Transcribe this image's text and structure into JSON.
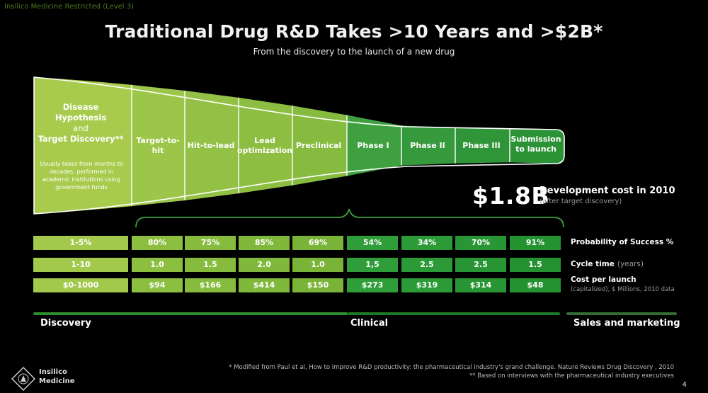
{
  "header": {
    "restricted": "Insilico Medicine Restricted (Level 3)",
    "title": "Traditional Drug R&D Takes >10 Years and >$2B*",
    "subtitle": "From the discovery to the launch of a new drug"
  },
  "funnel": {
    "first_stage": {
      "title_line1": "Disease Hypothesis",
      "title_line2": "and",
      "title_line3": "Target Discovery**",
      "note": "Usually takes from months to decades, performed in academic institutions using government funds"
    },
    "stages": [
      {
        "label": "Target-to-hit"
      },
      {
        "label": "Hit-to-lead"
      },
      {
        "label": "Lead optimization"
      },
      {
        "label": "Preclinical"
      },
      {
        "label": "Phase I"
      },
      {
        "label": "Phase II"
      },
      {
        "label": "Phase III"
      },
      {
        "label": "Submission to launch"
      }
    ]
  },
  "cost_callout": {
    "value": "$1.8B",
    "title": "Development cost in 2010",
    "subtitle": "(after target discovery)"
  },
  "metrics": {
    "rows": [
      {
        "label": "Probability of Success %",
        "label_muted": "",
        "sub": "",
        "first": "1-5%",
        "values": [
          "80%",
          "75%",
          "85%",
          "69%",
          "54%",
          "34%",
          "70%",
          "91%"
        ]
      },
      {
        "label": "Cycle time",
        "label_muted": "(years)",
        "sub": "",
        "first": "1-10",
        "values": [
          "1.0",
          "1.5",
          "2.0",
          "1.0",
          "1,5",
          "2.5",
          "2.5",
          "1.5"
        ]
      },
      {
        "label": "Cost per launch",
        "label_muted": "",
        "sub": "(capitalized), $ Millions, 2010 data",
        "first": "$0-1000",
        "values": [
          "$94",
          "$166",
          "$414",
          "$150",
          "$273",
          "$319",
          "$314",
          "$48"
        ]
      }
    ]
  },
  "phases": {
    "discovery": "Discovery",
    "clinical": "Clinical",
    "sales": "Sales and marketing"
  },
  "footer": {
    "footnote1": "* Modified from Paul et al, How to improve R&D productivity: the pharmaceutical industry's grand challenge. Nature Reviews Drug Discovery , 2010",
    "footnote2": "** Based on interviews with the pharmaceutical industry executives",
    "page": "4",
    "logo_line1": "Insilico",
    "logo_line2": "Medicine"
  },
  "colors": {
    "disease": "#a5c94a",
    "light_green": "#8cbf3f",
    "mid_green": "#6aad34",
    "dark_green": "#2f9e3a",
    "bar_discovery": "#2e8f2e",
    "bar_sales": "#356b35"
  }
}
